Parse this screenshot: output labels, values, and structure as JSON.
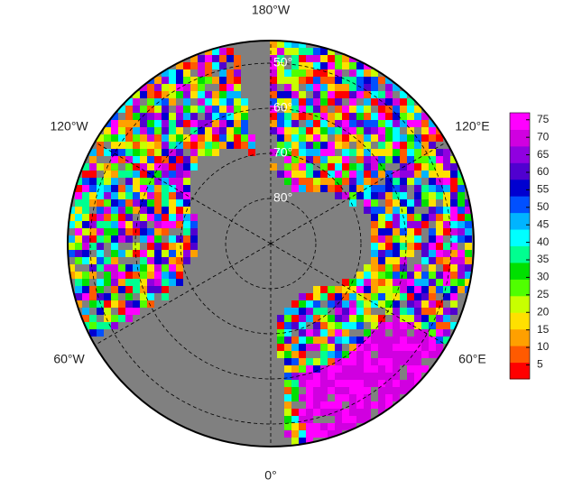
{
  "map": {
    "lat_range": [
      45,
      90
    ],
    "longitude_labels": [
      {
        "value": -180,
        "label": "180°W"
      },
      {
        "value": -120,
        "label": "120°W"
      },
      {
        "value": -60,
        "label": "60°W"
      },
      {
        "value": 0,
        "label": "0°"
      },
      {
        "value": 60,
        "label": "60°E"
      },
      {
        "value": 120,
        "label": "120°E"
      }
    ],
    "latitude_labels": [
      {
        "value": 50,
        "label": "50°"
      },
      {
        "value": 60,
        "label": "60°"
      },
      {
        "value": 70,
        "label": "70°"
      },
      {
        "value": 80,
        "label": "80°"
      }
    ],
    "colorbar": {
      "range": [
        1,
        77
      ],
      "ticks": [
        5,
        10,
        15,
        20,
        25,
        30,
        35,
        40,
        45,
        50,
        55,
        60,
        65,
        70,
        75
      ],
      "colors": [
        "#ff0000",
        "#ff5a00",
        "#ffa000",
        "#ffe000",
        "#c8ff00",
        "#50ff00",
        "#00e000",
        "#00ff90",
        "#00ffff",
        "#00b4ff",
        "#0050ff",
        "#0000d0",
        "#5000d0",
        "#9000e0",
        "#d000e0",
        "#ff00ff"
      ]
    }
  }
}
